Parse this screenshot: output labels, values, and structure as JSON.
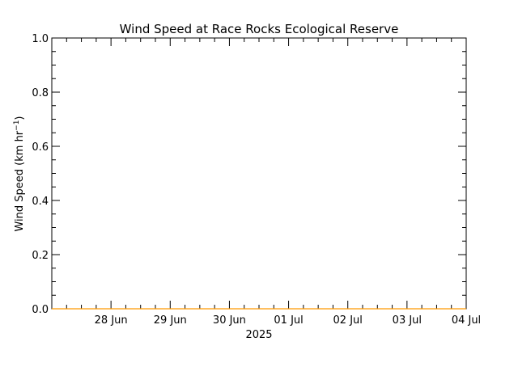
{
  "chart_data": {
    "type": "line",
    "title": "Wind Speed at Race Rocks Ecological Reserve",
    "ylabel": {
      "main": "Wind Speed (km hr",
      "sup": "−1",
      "close": ")"
    },
    "xlabel_year": "2025",
    "ylim": [
      0.0,
      1.0
    ],
    "y_ticks": [
      "0.0",
      "0.2",
      "0.4",
      "0.6",
      "0.8",
      "1.0"
    ],
    "x_range": [
      "2025-06-27 00:00",
      "2025-07-04 00:00"
    ],
    "x_ticks": [
      {
        "date": "2025-06-28",
        "label": "28 Jun"
      },
      {
        "date": "2025-06-29",
        "label": "29 Jun"
      },
      {
        "date": "2025-06-30",
        "label": "30 Jun"
      },
      {
        "date": "2025-07-01",
        "label": "01 Jul"
      },
      {
        "date": "2025-07-02",
        "label": "02 Jul"
      },
      {
        "date": "2025-07-03",
        "label": "03 Jul"
      },
      {
        "date": "2025-07-04",
        "label": "04 Jul"
      }
    ],
    "series": [
      {
        "color": "#ff9900",
        "x": [
          "2025-06-27 00:00",
          "2025-07-04 00:00"
        ],
        "values": [
          0.0,
          0.0
        ]
      }
    ],
    "grid": false
  }
}
